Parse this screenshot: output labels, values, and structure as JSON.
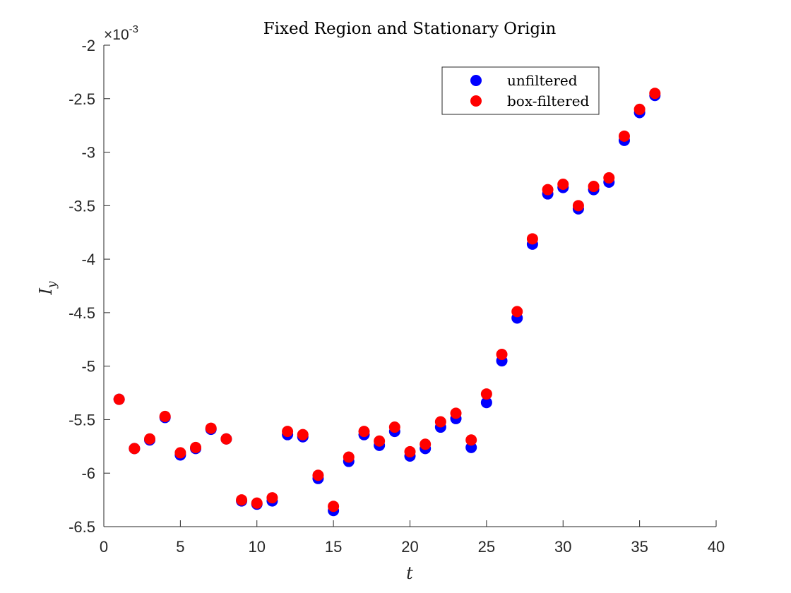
{
  "chart_data": {
    "type": "scatter",
    "title": "Fixed Region and Stationary Origin",
    "xlabel": "t",
    "ylabel": "I",
    "ylabel_subscript": "y",
    "y_exponent_label": "×10",
    "y_exponent_power": "-3",
    "xlim": [
      0,
      40
    ],
    "ylim": [
      -6.5,
      -2
    ],
    "xticks": [
      0,
      5,
      10,
      15,
      20,
      25,
      30,
      35,
      40
    ],
    "xtick_labels": [
      "0",
      "5",
      "10",
      "15",
      "20",
      "25",
      "30",
      "35",
      "40"
    ],
    "yticks": [
      -6.5,
      -6,
      -5.5,
      -5,
      -4.5,
      -4,
      -3.5,
      -3,
      -2.5,
      -2
    ],
    "ytick_labels": [
      "-6.5",
      "-6",
      "-5.5",
      "-5",
      "-4.5",
      "-4",
      "-3.5",
      "-3",
      "-2.5",
      "-2"
    ],
    "grid": false,
    "legend_position": "top-right",
    "x": [
      1,
      2,
      3,
      4,
      5,
      6,
      7,
      8,
      9,
      10,
      11,
      12,
      13,
      14,
      15,
      16,
      17,
      18,
      19,
      20,
      21,
      22,
      23,
      24,
      25,
      26,
      27,
      28,
      29,
      30,
      31,
      32,
      33,
      34,
      35,
      36
    ],
    "series": [
      {
        "name": "unfiltered",
        "color": "#0000ff",
        "values": [
          -5.31,
          -5.77,
          -5.69,
          -5.48,
          -5.83,
          -5.77,
          -5.59,
          -5.68,
          -6.26,
          -6.29,
          -6.26,
          -5.64,
          -5.66,
          -6.05,
          -6.35,
          -5.89,
          -5.64,
          -5.74,
          -5.61,
          -5.84,
          -5.77,
          -5.57,
          -5.49,
          -5.76,
          -5.34,
          -4.95,
          -4.55,
          -3.86,
          -3.39,
          -3.33,
          -3.53,
          -3.35,
          -3.28,
          -2.89,
          -2.63,
          -2.47
        ]
      },
      {
        "name": "box-filtered",
        "color": "#ff0000",
        "values": [
          -5.31,
          -5.77,
          -5.68,
          -5.47,
          -5.81,
          -5.76,
          -5.58,
          -5.68,
          -6.25,
          -6.28,
          -6.23,
          -5.61,
          -5.64,
          -6.02,
          -6.31,
          -5.85,
          -5.61,
          -5.7,
          -5.57,
          -5.8,
          -5.73,
          -5.52,
          -5.44,
          -5.69,
          -5.26,
          -4.89,
          -4.49,
          -3.81,
          -3.35,
          -3.3,
          -3.5,
          -3.32,
          -3.24,
          -2.85,
          -2.6,
          -2.45
        ]
      }
    ]
  }
}
